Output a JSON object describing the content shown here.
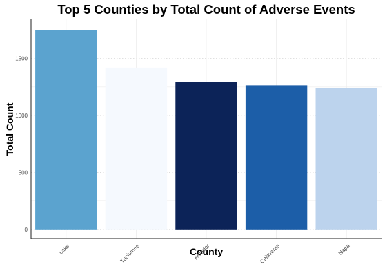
{
  "chart_data": {
    "type": "bar",
    "title": "Top 5 Counties by Total Count of Adverse Events",
    "xlabel": "County",
    "ylabel": "Total Count",
    "categories": [
      "Lake",
      "Tuolumne",
      "Amador",
      "Calaveras",
      "Napa"
    ],
    "values": [
      1750,
      1420,
      1293,
      1265,
      1238
    ],
    "colors": [
      "#5ba3cf",
      "#f5f9fe",
      "#0c2358",
      "#1c5ea8",
      "#bcd3ed"
    ],
    "yticks": [
      0,
      500,
      1000,
      1500
    ],
    "ylim": [
      -80,
      1850
    ],
    "grid": true
  }
}
